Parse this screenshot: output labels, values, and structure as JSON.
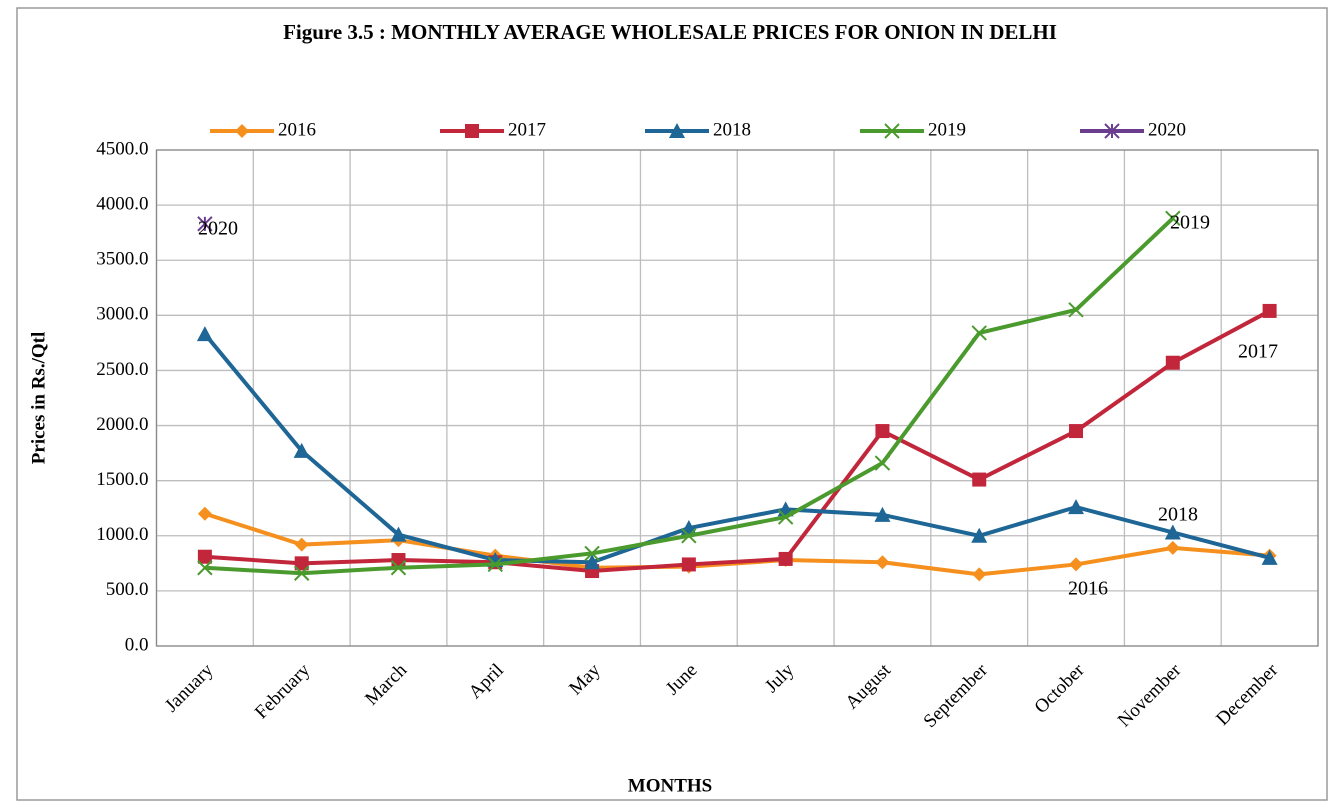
{
  "chart_data": {
    "type": "line",
    "title": "Figure 3.5 : MONTHLY  AVERAGE WHOLESALE PRICES FOR ONION IN DELHI",
    "x_label": "MONTHS",
    "y_label": "Prices in Rs./Qtl",
    "categories": [
      "January",
      "February",
      "March",
      "April",
      "May",
      "June",
      "July",
      "August",
      "September",
      "October",
      "November",
      "December"
    ],
    "series": [
      {
        "name": "2016",
        "color": "#f5901e",
        "marker": "diamond",
        "values": [
          1200,
          920,
          960,
          820,
          710,
          720,
          780,
          760,
          650,
          740,
          890,
          820
        ]
      },
      {
        "name": "2017",
        "color": "#c1263a",
        "marker": "square",
        "values": [
          810,
          750,
          780,
          760,
          680,
          740,
          790,
          1950,
          1510,
          1950,
          2570,
          3040
        ]
      },
      {
        "name": "2018",
        "color": "#1e6696",
        "marker": "triangle",
        "values": [
          2830,
          1770,
          1010,
          780,
          760,
          1070,
          1240,
          1190,
          1000,
          1260,
          1030,
          800
        ]
      },
      {
        "name": "2019",
        "color": "#4a9a2e",
        "marker": "x",
        "values": [
          710,
          660,
          710,
          740,
          840,
          1000,
          1170,
          1660,
          2840,
          3050,
          3880,
          null
        ]
      },
      {
        "name": "2020",
        "color": "#6a3d8e",
        "marker": "star",
        "values": [
          3830,
          null,
          null,
          null,
          null,
          null,
          null,
          null,
          null,
          null,
          null,
          null
        ]
      }
    ],
    "annotations": [
      "2020",
      "2019",
      "2017",
      "2018",
      "2016"
    ],
    "ylim": [
      0,
      4500
    ],
    "yticks": [
      {
        "value": 0,
        "label": "0.0"
      },
      {
        "value": 500,
        "label": "500.0"
      },
      {
        "value": 1000,
        "label": "1000.0"
      },
      {
        "value": 1500,
        "label": "1500.0"
      },
      {
        "value": 2000,
        "label": "2000.0"
      },
      {
        "value": 2500,
        "label": "2500.0"
      },
      {
        "value": 3000,
        "label": "3000.0"
      },
      {
        "value": 3500,
        "label": "3500.0"
      },
      {
        "value": 4000,
        "label": "4000.0"
      },
      {
        "value": 4500,
        "label": "4500.0"
      }
    ],
    "grid": true,
    "legend": "top"
  }
}
